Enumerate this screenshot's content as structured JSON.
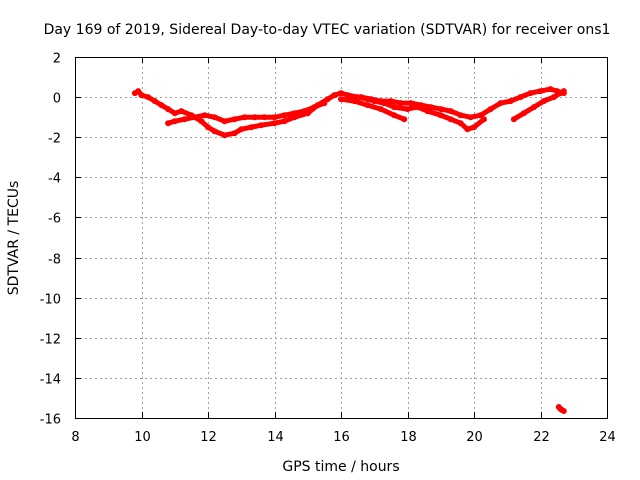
{
  "chart_data": {
    "type": "scatter",
    "title": "Day 169 of 2019, Sidereal Day-to-day VTEC variation (SDTVAR) for receiver ons1",
    "xlabel": "GPS time / hours",
    "ylabel": "SDTVAR / TECUs",
    "xlim": [
      8,
      24
    ],
    "ylim": [
      -16,
      2
    ],
    "xticks": [
      8,
      10,
      12,
      14,
      16,
      18,
      20,
      22,
      24
    ],
    "xtick_labels": [
      "8",
      "10",
      "12",
      "14",
      "16",
      "18",
      "20",
      "22",
      "24"
    ],
    "yticks": [
      2,
      0,
      -2,
      -4,
      -6,
      -8,
      -10,
      -12,
      -14,
      -16
    ],
    "ytick_labels": [
      "2",
      "0",
      "-2",
      "-4",
      "-6",
      "-8",
      "-10",
      "-12",
      "-14",
      "-16"
    ],
    "grid": true,
    "legend": "none",
    "series": [
      {
        "name": "SDTVAR",
        "color": "#ff0000",
        "segments": [
          {
            "x": [
              9.8,
              9.9,
              10.0,
              10.2,
              10.4,
              10.6,
              10.8,
              11.0,
              11.2,
              11.5,
              11.8,
              12.0,
              12.2,
              12.5,
              12.8,
              13.0,
              13.3,
              13.6,
              14.0,
              14.3,
              14.6,
              15.0,
              15.3,
              15.6,
              15.8,
              16.0,
              16.2,
              16.5,
              16.8,
              17.0,
              17.3,
              17.6,
              18.0,
              18.3,
              18.6,
              19.0,
              19.3,
              19.6,
              19.8,
              20.0,
              20.3
            ],
            "y": [
              0.2,
              0.3,
              0.1,
              0.0,
              -0.2,
              -0.4,
              -0.6,
              -0.8,
              -0.7,
              -0.9,
              -1.2,
              -1.5,
              -1.7,
              -1.9,
              -1.8,
              -1.6,
              -1.5,
              -1.4,
              -1.3,
              -1.2,
              -1.0,
              -0.8,
              -0.4,
              -0.1,
              0.1,
              0.2,
              0.1,
              0.0,
              -0.1,
              -0.2,
              -0.3,
              -0.5,
              -0.6,
              -0.5,
              -0.7,
              -0.9,
              -1.1,
              -1.3,
              -1.6,
              -1.5,
              -1.1
            ]
          },
          {
            "x": [
              10.8,
              11.0,
              11.3,
              11.6,
              11.9,
              12.2,
              12.5,
              12.8,
              13.1,
              13.4,
              13.7,
              14.0,
              14.3,
              14.6,
              14.9,
              15.2,
              15.5
            ],
            "y": [
              -1.3,
              -1.2,
              -1.1,
              -1.0,
              -0.9,
              -1.0,
              -1.2,
              -1.1,
              -1.0,
              -1.0,
              -1.0,
              -1.0,
              -0.9,
              -0.8,
              -0.7,
              -0.5,
              -0.3
            ]
          },
          {
            "x": [
              16.3,
              16.6,
              16.9,
              17.2,
              17.5,
              17.8,
              18.1,
              18.4,
              18.7,
              19.0,
              19.3,
              19.6,
              19.9,
              20.2,
              20.5,
              20.8,
              21.1,
              21.4,
              21.7,
              22.0,
              22.3,
              22.5,
              22.7
            ],
            "y": [
              0.0,
              0.0,
              -0.1,
              -0.2,
              -0.2,
              -0.3,
              -0.3,
              -0.4,
              -0.5,
              -0.6,
              -0.7,
              -0.9,
              -1.0,
              -0.9,
              -0.6,
              -0.3,
              -0.2,
              0.0,
              0.2,
              0.3,
              0.4,
              0.3,
              0.2
            ]
          },
          {
            "x": [
              21.2,
              21.5,
              21.8,
              22.1,
              22.4,
              22.6,
              22.7
            ],
            "y": [
              -1.1,
              -0.8,
              -0.5,
              -0.2,
              0.0,
              0.2,
              0.3
            ]
          },
          {
            "x": [
              16.0,
              16.4,
              16.8,
              17.2,
              17.6,
              17.9
            ],
            "y": [
              -0.1,
              -0.2,
              -0.4,
              -0.6,
              -0.9,
              -1.1
            ]
          },
          {
            "x": [
              22.55,
              22.6,
              22.65,
              22.7
            ],
            "y": [
              -15.45,
              -15.55,
              -15.6,
              -15.65
            ]
          }
        ]
      }
    ]
  }
}
